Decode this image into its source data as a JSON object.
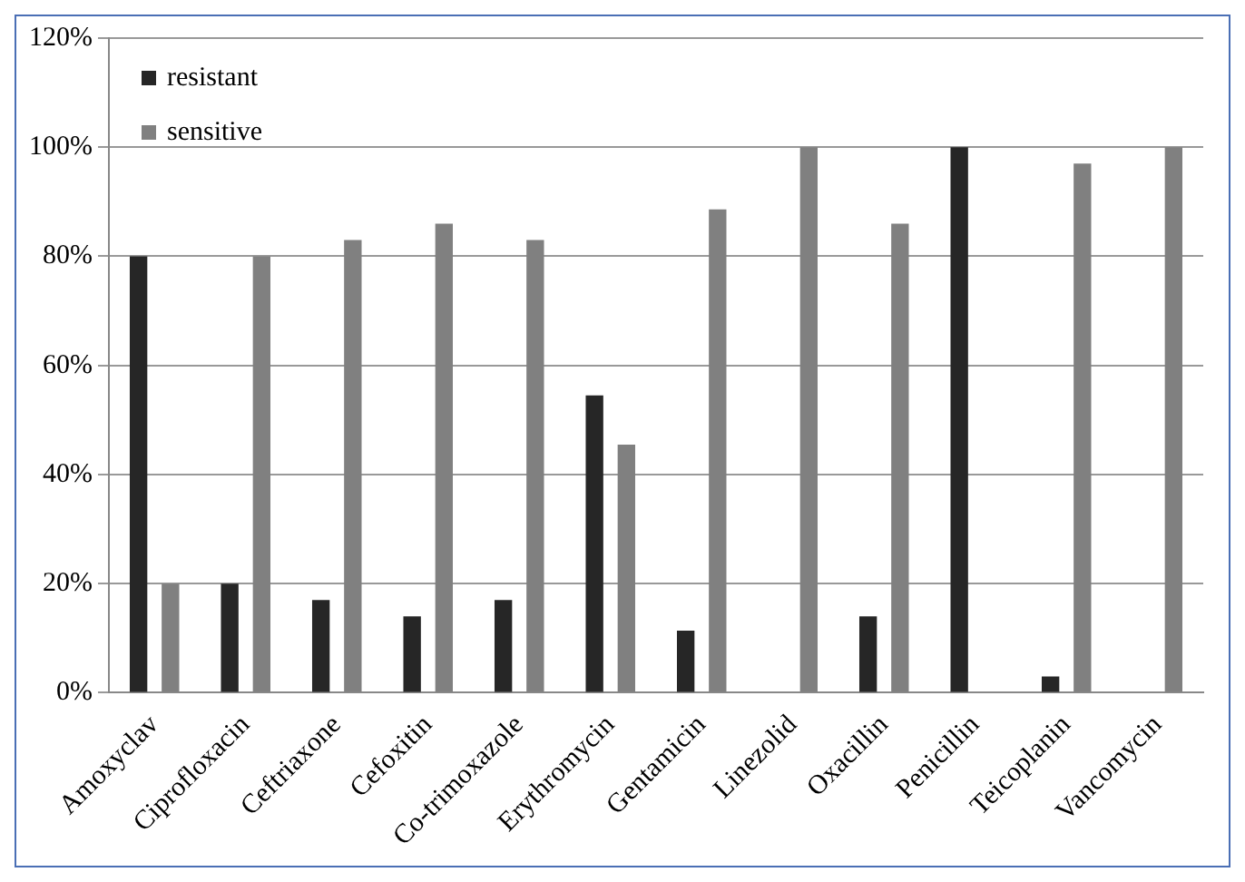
{
  "chart_data": {
    "type": "bar",
    "categories": [
      "Amoxyclav",
      "Ciprofloxacin",
      "Ceftriaxone",
      "Cefoxitin",
      "Co-trimoxazole",
      "Erythromycin",
      "Gentamicin",
      "Linezolid",
      "Oxacillin",
      "Penicillin",
      "Teicoplanin",
      "Vancomycin"
    ],
    "series": [
      {
        "name": "resistant",
        "color": "#262626",
        "values": [
          80,
          20,
          17,
          14,
          17,
          54.5,
          11.4,
          0,
          14,
          100,
          3,
          0
        ]
      },
      {
        "name": "sensitive",
        "color": "#808080",
        "values": [
          20,
          80,
          83,
          86,
          83,
          45.5,
          88.6,
          100,
          86,
          0,
          97,
          100
        ]
      }
    ],
    "ylim": [
      0,
      120
    ],
    "yticks": [
      {
        "value": 0,
        "label": "0%"
      },
      {
        "value": 20,
        "label": "20%"
      },
      {
        "value": 40,
        "label": "40%"
      },
      {
        "value": 60,
        "label": "60%"
      },
      {
        "value": 80,
        "label": "80%"
      },
      {
        "value": 100,
        "label": "100%"
      },
      {
        "value": 120,
        "label": "120%"
      }
    ],
    "grid": "y",
    "legend": "top left"
  }
}
